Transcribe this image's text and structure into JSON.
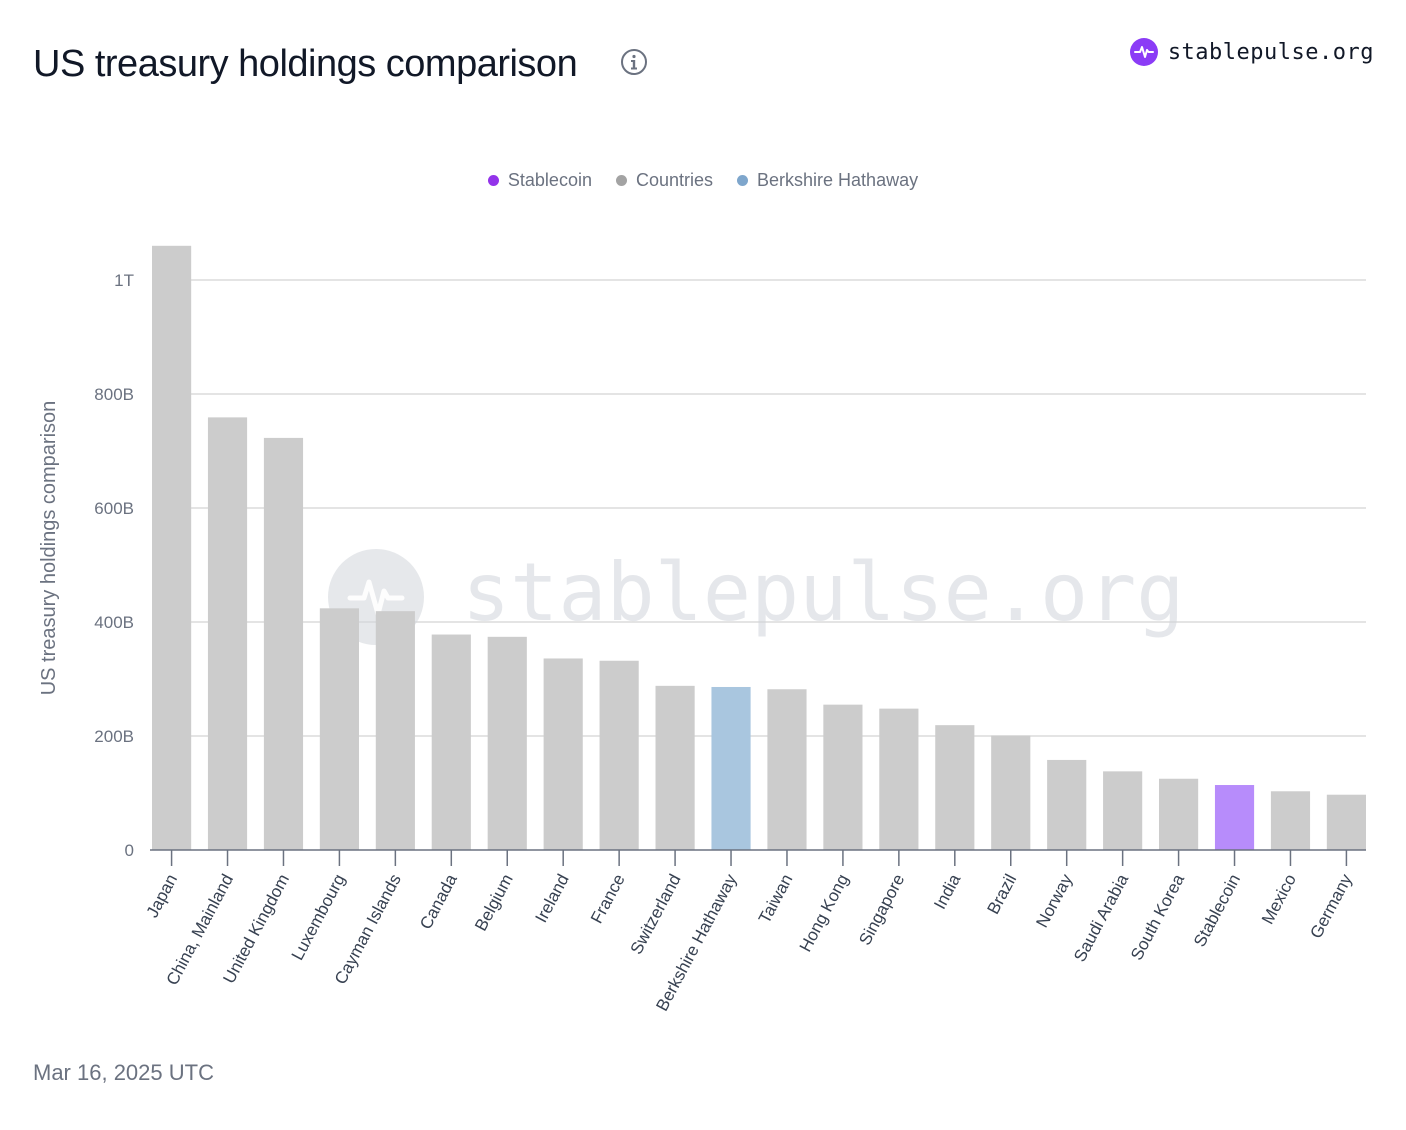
{
  "header": {
    "title": "US treasury holdings comparison",
    "brand": "stablepulse.org"
  },
  "footer": {
    "date": "Mar 16, 2025 UTC"
  },
  "icons": {
    "info": "info-icon",
    "brand": "pulse-icon"
  },
  "colors": {
    "stablecoin": "#b78cfb",
    "countries": "#cccccc",
    "berkshire": "#a9c6df",
    "legend_stablecoin": "#9333ea",
    "legend_countries": "#a3a3a3",
    "legend_berkshire": "#7ea6cc",
    "brand": "#8b3cf6"
  },
  "legend": [
    {
      "label": "Stablecoin",
      "color_key": "legend_stablecoin"
    },
    {
      "label": "Countries",
      "color_key": "legend_countries"
    },
    {
      "label": "Berkshire Hathaway",
      "color_key": "legend_berkshire"
    }
  ],
  "watermark": "stablepulse.org",
  "chart_data": {
    "type": "bar",
    "title": "US treasury holdings comparison",
    "ylabel": "US treasury holdings comparison",
    "xlabel": "",
    "ylim": [
      0,
      1100000000000
    ],
    "yticks": [
      {
        "value": 0,
        "label": "0"
      },
      {
        "value": 200000000000,
        "label": "200B"
      },
      {
        "value": 400000000000,
        "label": "400B"
      },
      {
        "value": 600000000000,
        "label": "600B"
      },
      {
        "value": 800000000000,
        "label": "800B"
      },
      {
        "value": 1000000000000,
        "label": "1T"
      }
    ],
    "grid": true,
    "legend_position": "top-center",
    "categories": [
      "Japan",
      "China, Mainland",
      "United Kingdom",
      "Luxembourg",
      "Cayman Islands",
      "Canada",
      "Belgium",
      "Ireland",
      "France",
      "Switzerland",
      "Berkshire Hathaway",
      "Taiwan",
      "Hong Kong",
      "Singapore",
      "India",
      "Brazil",
      "Norway",
      "Saudi Arabia",
      "South Korea",
      "Stablecoin",
      "Mexico",
      "Germany"
    ],
    "values": [
      1060000000000,
      759000000000,
      723000000000,
      424000000000,
      419000000000,
      378000000000,
      374000000000,
      336000000000,
      332000000000,
      288000000000,
      286000000000,
      282000000000,
      255000000000,
      248000000000,
      219000000000,
      201000000000,
      158000000000,
      138000000000,
      125000000000,
      114000000000,
      103000000000,
      97000000000
    ],
    "groups": [
      "Countries",
      "Countries",
      "Countries",
      "Countries",
      "Countries",
      "Countries",
      "Countries",
      "Countries",
      "Countries",
      "Countries",
      "Berkshire Hathaway",
      "Countries",
      "Countries",
      "Countries",
      "Countries",
      "Countries",
      "Countries",
      "Countries",
      "Countries",
      "Stablecoin",
      "Countries",
      "Countries"
    ]
  }
}
